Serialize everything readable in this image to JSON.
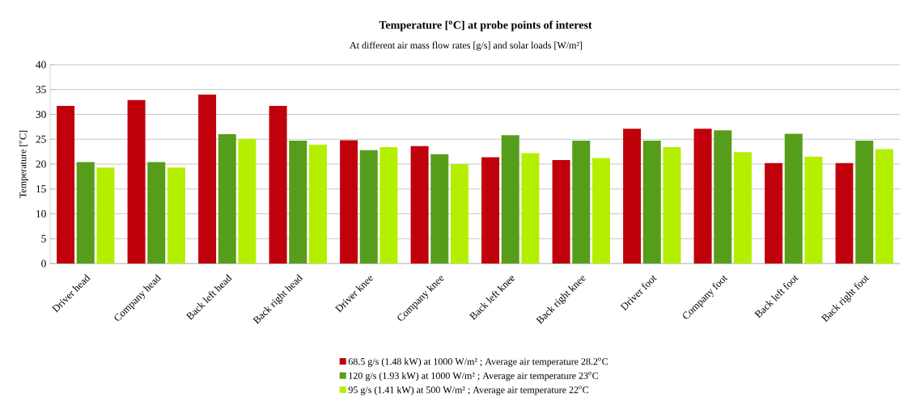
{
  "chart_data": {
    "type": "bar",
    "title": "Temperature [$^{o}$C] at probe points of interest",
    "subtitle": "At different air mass flow rates [g/s] and solar loads [W/m²]",
    "ylabel": "Temperature [$^{o}$C]",
    "categories": [
      "Driver head",
      "Company head",
      "Back left head",
      "Back right head",
      "Driver knee",
      "Company knee",
      "Back left knee",
      "Back right knee",
      "Driver foot",
      "Company foot",
      "Back left foot",
      "Back right foot"
    ],
    "series": [
      {
        "name": "68.5 g/s (1.48 kW) at 1000 W/m² ; Average air temperature 28.2$^{o}$C",
        "color": "#c0000b",
        "values": [
          31.7,
          32.9,
          34.0,
          31.7,
          24.8,
          23.6,
          21.4,
          20.8,
          27.1,
          27.1,
          20.2,
          20.2
        ]
      },
      {
        "name": "120 g/s (1.93 kW) at 1000 W/m² ; Average air temperature 23$^{o}$C",
        "color": "#579d1c",
        "values": [
          20.4,
          20.4,
          26.0,
          24.7,
          22.8,
          22.0,
          25.8,
          24.7,
          24.7,
          26.8,
          26.1,
          24.7
        ]
      },
      {
        "name": "95 g/s (1.41 kW) at 500 W/m² ; Average air temperature 22$^{o}$C",
        "color": "#b4ef00",
        "values": [
          19.3,
          19.3,
          25.1,
          23.9,
          23.4,
          20.0,
          22.2,
          21.2,
          23.4,
          22.4,
          21.5,
          23.0
        ]
      }
    ],
    "ylim": [
      0,
      40
    ],
    "yticks": [
      0,
      5,
      10,
      15,
      20,
      25,
      30,
      35,
      40
    ],
    "grid": "y",
    "legend": "bottom"
  }
}
